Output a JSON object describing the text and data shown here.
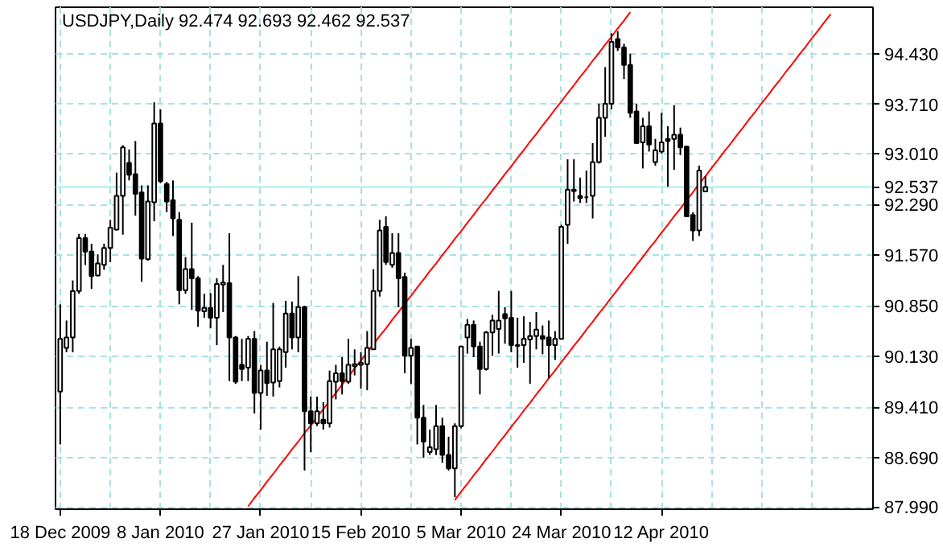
{
  "chart_data": {
    "type": "candlestick",
    "title": "USDJPY,Daily  92.474 92.693 92.462 92.537",
    "categories": [
      "18 Dec 2009",
      null,
      null,
      null,
      null,
      null,
      null,
      null,
      null,
      null,
      null,
      null,
      null,
      null,
      null,
      null,
      "8 Jan 2010",
      null,
      null,
      null,
      null,
      null,
      null,
      null,
      null,
      null,
      null,
      null,
      null,
      null,
      null,
      null,
      "27 Jan 2010",
      null,
      null,
      null,
      null,
      null,
      null,
      null,
      null,
      null,
      null,
      null,
      null,
      null,
      null,
      null,
      "15 Feb 2010",
      null,
      null,
      null,
      null,
      null,
      null,
      null,
      null,
      null,
      null,
      null,
      null,
      null,
      null,
      null,
      "5 Mar 2010",
      null,
      null,
      null,
      null,
      null,
      null,
      null,
      null,
      null,
      null,
      null,
      null,
      null,
      null,
      null,
      "24 Mar 2010",
      null,
      null,
      null,
      null,
      null,
      null,
      null,
      null,
      null,
      null,
      null,
      null,
      null,
      null,
      null,
      "12 Apr 2010",
      null,
      null,
      null,
      null,
      null,
      null,
      null,
      null,
      null,
      null,
      null,
      null,
      null,
      null,
      null,
      null,
      null,
      null,
      null,
      null,
      null,
      null,
      null,
      null,
      null,
      null,
      null,
      null,
      null,
      null,
      null,
      null,
      null
    ],
    "ohlc": [
      [
        89.63,
        90.87,
        88.88,
        90.38
      ],
      [
        90.25,
        90.64,
        90.19,
        90.4
      ],
      [
        90.4,
        91.21,
        90.19,
        91.06
      ],
      [
        91.06,
        91.87,
        91.02,
        91.81
      ],
      [
        91.81,
        91.87,
        91.43,
        91.62
      ],
      [
        91.62,
        91.73,
        91.09,
        91.27
      ],
      [
        91.28,
        91.58,
        91.27,
        91.45
      ],
      [
        91.43,
        91.73,
        91.36,
        91.67
      ],
      [
        91.67,
        92.07,
        91.47,
        91.96
      ],
      [
        91.93,
        92.74,
        91.92,
        92.41
      ],
      [
        92.41,
        93.13,
        91.86,
        93.1
      ],
      [
        92.88,
        93.07,
        92.63,
        92.71
      ],
      [
        92.72,
        93.19,
        92.13,
        92.44
      ],
      [
        92.46,
        92.56,
        91.19,
        91.52
      ],
      [
        91.51,
        92.56,
        91.49,
        92.33
      ],
      [
        92.32,
        93.74,
        92.05,
        93.44
      ],
      [
        93.44,
        93.64,
        92.59,
        92.62
      ],
      [
        92.58,
        92.61,
        92.18,
        92.33
      ],
      [
        92.35,
        92.63,
        91.84,
        92.09
      ],
      [
        92.07,
        92.18,
        90.87,
        91.07
      ],
      [
        91.07,
        91.54,
        91.02,
        91.37
      ],
      [
        91.37,
        92.03,
        90.79,
        91.24
      ],
      [
        91.24,
        91.27,
        90.55,
        90.78
      ],
      [
        90.77,
        91.02,
        90.68,
        90.82
      ],
      [
        90.82,
        91.03,
        90.53,
        90.68
      ],
      [
        90.68,
        91.24,
        90.29,
        91.16
      ],
      [
        91.15,
        91.43,
        90.76,
        91.18
      ],
      [
        91.17,
        91.88,
        89.78,
        90.4
      ],
      [
        90.4,
        90.42,
        89.74,
        89.77
      ],
      [
        90.01,
        90.38,
        89.78,
        89.95
      ],
      [
        89.97,
        90.42,
        89.78,
        90.38
      ],
      [
        90.38,
        90.49,
        89.32,
        89.61
      ],
      [
        89.61,
        90.01,
        89.09,
        89.93
      ],
      [
        89.93,
        90.34,
        89.57,
        89.75
      ],
      [
        89.76,
        90.89,
        89.56,
        90.23
      ],
      [
        89.78,
        90.27,
        89.69,
        90.23
      ],
      [
        90.19,
        90.92,
        89.97,
        90.74
      ],
      [
        90.74,
        90.91,
        90.23,
        90.4
      ],
      [
        90.4,
        91.27,
        90.19,
        90.83
      ],
      [
        90.83,
        90.85,
        88.51,
        89.35
      ],
      [
        89.35,
        89.56,
        88.77,
        89.18
      ],
      [
        89.18,
        89.56,
        89.14,
        89.35
      ],
      [
        89.23,
        89.48,
        89.09,
        89.18
      ],
      [
        89.18,
        89.93,
        89.12,
        89.78
      ],
      [
        89.77,
        90.01,
        89.52,
        89.89
      ],
      [
        89.89,
        90.12,
        89.59,
        89.78
      ],
      [
        89.77,
        90.38,
        89.74,
        90.01
      ],
      [
        89.99,
        90.23,
        89.86,
        90.02
      ],
      [
        90.01,
        90.19,
        89.67,
        90.04
      ],
      [
        90.02,
        90.49,
        89.65,
        90.25
      ],
      [
        90.23,
        91.37,
        90.23,
        91.06
      ],
      [
        91.06,
        92.07,
        90.98,
        91.92
      ],
      [
        91.97,
        92.12,
        91.43,
        91.47
      ],
      [
        91.43,
        91.88,
        91.39,
        91.6
      ],
      [
        91.6,
        91.88,
        90.83,
        91.24
      ],
      [
        91.26,
        91.32,
        89.89,
        90.14
      ],
      [
        90.14,
        90.38,
        89.74,
        90.25
      ],
      [
        90.27,
        90.27,
        88.88,
        89.26
      ],
      [
        89.26,
        89.44,
        88.69,
        88.92
      ],
      [
        88.77,
        89.09,
        88.73,
        88.84
      ],
      [
        88.81,
        89.44,
        88.73,
        89.14
      ],
      [
        89.14,
        89.26,
        88.62,
        88.73
      ],
      [
        88.73,
        88.99,
        88.51,
        88.54
      ],
      [
        88.54,
        89.18,
        88.13,
        89.14
      ],
      [
        89.14,
        90.27,
        89.11,
        90.27
      ],
      [
        90.4,
        90.66,
        90.17,
        90.58
      ],
      [
        90.58,
        90.64,
        90.12,
        90.27
      ],
      [
        90.27,
        90.34,
        89.59,
        89.95
      ],
      [
        89.95,
        90.49,
        89.93,
        90.47
      ],
      [
        90.47,
        90.72,
        90.14,
        90.64
      ],
      [
        90.52,
        91.06,
        90.17,
        90.64
      ],
      [
        90.73,
        90.83,
        90.31,
        90.67
      ],
      [
        90.68,
        91.06,
        90.19,
        90.29
      ],
      [
        90.29,
        90.68,
        89.97,
        90.28
      ],
      [
        90.29,
        90.7,
        90.04,
        90.38
      ],
      [
        90.37,
        90.62,
        89.74,
        90.42
      ],
      [
        90.42,
        90.76,
        90.23,
        90.51
      ],
      [
        90.42,
        90.57,
        90.16,
        90.38
      ],
      [
        90.4,
        90.64,
        89.82,
        90.29
      ],
      [
        90.29,
        90.49,
        90.08,
        90.38
      ],
      [
        90.38,
        92.0,
        90.37,
        91.97
      ],
      [
        92.0,
        92.93,
        91.73,
        92.5
      ],
      [
        92.5,
        92.93,
        92.33,
        92.48
      ],
      [
        92.41,
        92.67,
        92.31,
        92.38
      ],
      [
        92.39,
        92.77,
        92.31,
        92.39
      ],
      [
        92.41,
        93.16,
        92.09,
        92.89
      ],
      [
        92.89,
        93.72,
        92.87,
        93.52
      ],
      [
        93.52,
        94.24,
        93.25,
        93.72
      ],
      [
        93.72,
        94.72,
        93.64,
        94.6
      ],
      [
        94.64,
        94.75,
        94.47,
        94.52
      ],
      [
        94.52,
        94.57,
        94.07,
        94.27
      ],
      [
        94.27,
        94.43,
        93.52,
        93.59
      ],
      [
        93.61,
        93.72,
        93.16,
        93.16
      ],
      [
        93.17,
        93.52,
        92.8,
        93.4
      ],
      [
        93.4,
        93.61,
        93.04,
        93.14
      ],
      [
        92.89,
        93.22,
        92.84,
        93.06
      ],
      [
        93.04,
        93.59,
        93.01,
        93.17
      ],
      [
        93.22,
        93.4,
        92.54,
        93.19
      ],
      [
        93.22,
        93.7,
        92.78,
        93.28
      ],
      [
        93.28,
        93.38,
        92.99,
        93.1
      ],
      [
        93.11,
        93.12,
        92.11,
        92.12
      ],
      [
        92.14,
        92.18,
        91.77,
        91.92
      ],
      [
        91.92,
        92.84,
        91.84,
        92.77
      ],
      [
        92.474,
        92.693,
        92.462,
        92.537
      ],
      null,
      null,
      null,
      null,
      null,
      null,
      null,
      null,
      null,
      null,
      null,
      null,
      null,
      null,
      null,
      null,
      null,
      null,
      null,
      null,
      null,
      null,
      null,
      null,
      null,
      null
    ],
    "series": [
      {
        "type": "line",
        "color": "#ff0000",
        "values": [
          null,
          null,
          null,
          null,
          null,
          null,
          null,
          null,
          null,
          null,
          null,
          null,
          null,
          null,
          null,
          null,
          null,
          null,
          null,
          null,
          null,
          null,
          null,
          null,
          null,
          null,
          null,
          null,
          null,
          null,
          88.0,
          88.12,
          88.23,
          88.35,
          88.46,
          88.58,
          88.69,
          88.81,
          88.92,
          89.04,
          89.15,
          89.27,
          89.38,
          89.5,
          89.61,
          89.73,
          89.84,
          89.96,
          90.07,
          90.19,
          90.3,
          90.42,
          90.53,
          90.65,
          90.76,
          90.88,
          90.99,
          91.11,
          91.22,
          91.34,
          91.45,
          91.57,
          91.68,
          91.8,
          91.91,
          92.03,
          92.14,
          92.26,
          92.37,
          92.49,
          92.6,
          92.72,
          92.83,
          92.95,
          93.06,
          93.18,
          93.29,
          93.41,
          93.52,
          93.64,
          93.75,
          93.87,
          93.98,
          94.1,
          94.21,
          94.33,
          94.44,
          94.56,
          94.67,
          94.79,
          94.9,
          95.02,
          null,
          null,
          null,
          null,
          null,
          null,
          null,
          null,
          null,
          null,
          null,
          null,
          null,
          null,
          null,
          null,
          null,
          null,
          null,
          null,
          null,
          null,
          null,
          null,
          null,
          null,
          null,
          null,
          null,
          null,
          null,
          null,
          null,
          null,
          null,
          null,
          null,
          null
        ]
      },
      {
        "type": "line",
        "color": "#ff0000",
        "values": [
          null,
          null,
          null,
          null,
          null,
          null,
          null,
          null,
          null,
          null,
          null,
          null,
          null,
          null,
          null,
          null,
          null,
          null,
          null,
          null,
          null,
          null,
          null,
          null,
          null,
          null,
          null,
          null,
          null,
          null,
          null,
          null,
          null,
          null,
          null,
          null,
          null,
          null,
          null,
          null,
          null,
          null,
          null,
          null,
          null,
          null,
          null,
          null,
          null,
          null,
          null,
          null,
          null,
          null,
          null,
          null,
          null,
          null,
          null,
          null,
          null,
          null,
          null,
          88.09,
          88.21,
          88.32,
          88.44,
          88.55,
          88.67,
          88.78,
          88.9,
          89.01,
          89.13,
          89.24,
          89.36,
          89.47,
          89.59,
          89.7,
          89.82,
          89.93,
          90.05,
          90.16,
          90.28,
          90.39,
          90.51,
          90.62,
          90.74,
          90.85,
          90.97,
          91.08,
          91.2,
          91.31,
          91.43,
          91.54,
          91.66,
          91.77,
          91.89,
          92.0,
          92.12,
          92.23,
          92.35,
          92.46,
          92.58,
          92.69,
          92.81,
          92.92,
          93.04,
          93.15,
          93.27,
          93.38,
          93.5,
          93.61,
          93.73,
          93.84,
          93.96,
          94.07,
          94.19,
          94.3,
          94.42,
          94.53,
          94.65,
          94.76,
          94.88,
          94.99,
          null,
          null,
          null,
          null,
          null,
          null
        ]
      }
    ],
    "ylim": [
      87.96,
      95.09
    ],
    "yticks": [
      {
        "value": 87.99,
        "label": "87.990"
      },
      {
        "value": 88.69,
        "label": "88.690"
      },
      {
        "value": 89.41,
        "label": "89.410"
      },
      {
        "value": 90.13,
        "label": "90.130"
      },
      {
        "value": 90.85,
        "label": "90.850"
      },
      {
        "value": 91.57,
        "label": "91.570"
      },
      {
        "value": 92.29,
        "label": "92.290"
      },
      {
        "value": 93.01,
        "label": "93.010"
      },
      {
        "value": 93.71,
        "label": "93.710"
      },
      {
        "value": 94.43,
        "label": "94.430"
      }
    ],
    "ref_lines": [
      {
        "axis": "y",
        "value": 92.537,
        "label": "92.537",
        "color": "#a6eeee"
      }
    ],
    "grid": true
  }
}
